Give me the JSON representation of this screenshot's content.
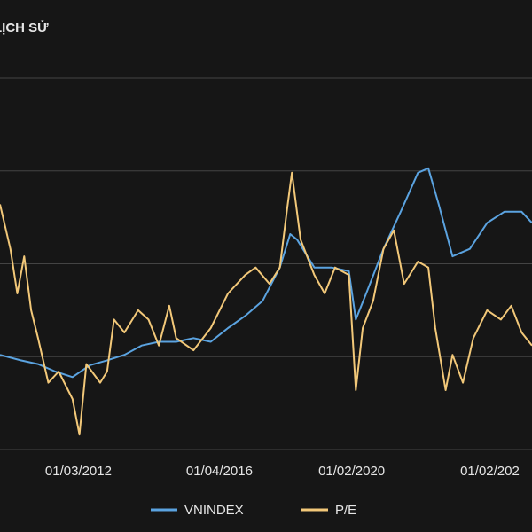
{
  "chart_data": {
    "type": "line",
    "title": "LỊCH SỬ",
    "xlim": [
      2009.9,
      2025.3
    ],
    "xticks": [
      {
        "value": 2012.17,
        "label": "01/03/2012"
      },
      {
        "value": 2016.25,
        "label": "01/04/2016"
      },
      {
        "value": 2020.08,
        "label": "01/02/2020"
      },
      {
        "value": 2024.08,
        "label": "01/02/202"
      }
    ],
    "ylim": [
      0,
      100
    ],
    "yticks": [
      0,
      25,
      50,
      75,
      100
    ],
    "grid": true,
    "series": [
      {
        "name": "VNINDEX",
        "color": "#5ba3e0",
        "x": [
          2009.9,
          2010.5,
          2011,
          2011.5,
          2012,
          2012.5,
          2013,
          2013.5,
          2014,
          2014.5,
          2015,
          2015.5,
          2016,
          2016.5,
          2017,
          2017.5,
          2018,
          2018.3,
          2018.5,
          2019,
          2019.5,
          2020,
          2020.2,
          2020.5,
          2021,
          2021.5,
          2022,
          2022.3,
          2022.6,
          2023,
          2023.5,
          2024,
          2024.5,
          2025,
          2025.3
        ],
        "values": [
          25.5,
          24,
          23,
          21,
          19.5,
          22.7,
          24,
          25.5,
          28,
          29,
          29,
          30,
          29,
          32.7,
          36,
          40,
          49,
          58,
          56.5,
          49,
          49,
          48,
          35,
          42,
          54,
          64,
          74.5,
          75.7,
          66,
          52,
          54,
          61,
          64,
          64,
          61
        ]
      },
      {
        "name": "P/E",
        "color": "#f2c879",
        "x": [
          2009.9,
          2010.2,
          2010.4,
          2010.6,
          2010.8,
          2011,
          2011.3,
          2011.6,
          2012,
          2012.2,
          2012.4,
          2012.8,
          2013,
          2013.2,
          2013.5,
          2013.9,
          2014.2,
          2014.5,
          2014.8,
          2015,
          2015.5,
          2016,
          2016.5,
          2017,
          2017.3,
          2017.7,
          2018,
          2018.2,
          2018.35,
          2018.6,
          2019,
          2019.3,
          2019.6,
          2020,
          2020.2,
          2020.4,
          2020.7,
          2021,
          2021.3,
          2021.6,
          2022,
          2022.3,
          2022.5,
          2022.8,
          2023,
          2023.3,
          2023.6,
          2024,
          2024.4,
          2024.7,
          2025,
          2025.3
        ],
        "values": [
          66,
          54,
          42,
          52,
          37.5,
          30,
          18,
          21,
          13.6,
          4,
          23,
          18,
          21,
          35,
          31.5,
          37.5,
          35,
          28,
          38.7,
          30,
          26.7,
          32.7,
          42,
          47,
          49,
          44.6,
          49,
          64,
          74.5,
          56.5,
          47,
          42,
          49,
          47,
          16,
          32.7,
          40,
          54,
          59,
          44.6,
          50.6,
          49,
          32.7,
          16,
          25.5,
          18,
          30,
          37.5,
          35,
          38.7,
          31.5,
          28
        ]
      }
    ]
  }
}
